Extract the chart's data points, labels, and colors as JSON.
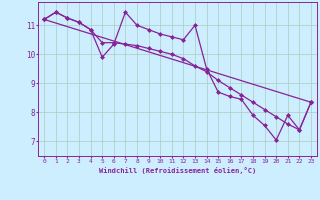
{
  "xlabel": "Windchill (Refroidissement éolien,°C)",
  "bg_color": "#cceeff",
  "grid_color": "#aaccbb",
  "line_color": "#882299",
  "marker": "D",
  "markersize": 2.0,
  "linewidth": 0.9,
  "xlim": [
    -0.5,
    23.5
  ],
  "ylim": [
    6.5,
    11.8
  ],
  "yticks": [
    7,
    8,
    9,
    10,
    11
  ],
  "xticks": [
    0,
    1,
    2,
    3,
    4,
    5,
    6,
    7,
    8,
    9,
    10,
    11,
    12,
    13,
    14,
    15,
    16,
    17,
    18,
    19,
    20,
    21,
    22,
    23
  ],
  "line1_x": [
    0,
    1,
    2,
    3,
    4,
    5,
    6,
    7,
    8,
    9,
    10,
    11,
    12,
    13,
    14,
    15,
    16,
    17,
    18,
    19,
    20,
    21,
    22,
    23
  ],
  "line1_y": [
    11.2,
    11.45,
    11.25,
    11.1,
    10.85,
    9.9,
    10.35,
    11.45,
    11.0,
    10.85,
    10.7,
    10.6,
    10.5,
    11.0,
    9.5,
    8.7,
    8.55,
    8.45,
    7.9,
    7.55,
    7.05,
    7.9,
    7.4,
    8.35
  ],
  "line2_x": [
    0,
    1,
    2,
    3,
    4,
    5,
    6,
    7,
    8,
    9,
    10,
    11,
    12,
    13,
    14,
    15,
    16,
    17,
    18,
    19,
    20,
    21,
    22,
    23
  ],
  "line2_y": [
    11.2,
    11.45,
    11.25,
    11.1,
    10.85,
    10.4,
    10.4,
    10.35,
    10.3,
    10.2,
    10.1,
    10.0,
    9.85,
    9.6,
    9.4,
    9.1,
    8.85,
    8.6,
    8.35,
    8.1,
    7.85,
    7.6,
    7.4,
    8.35
  ],
  "line3_x": [
    0,
    23
  ],
  "line3_y": [
    11.2,
    8.35
  ]
}
